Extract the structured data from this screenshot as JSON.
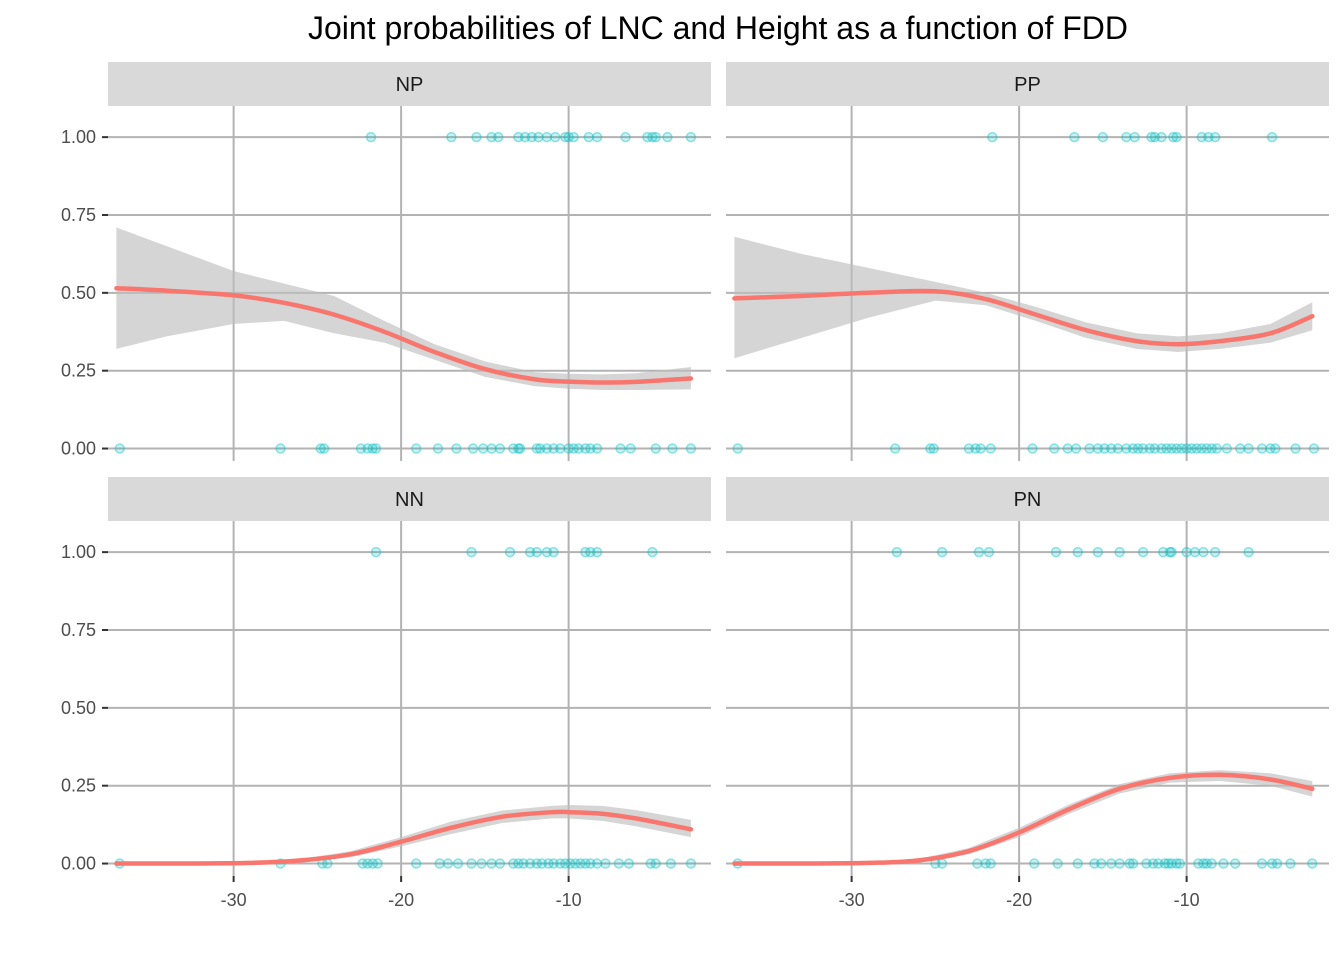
{
  "chart_data": {
    "type": "scatter",
    "title": "Joint probabilities of LNC and Height as a function of FDD",
    "xlabel": "",
    "ylabel": "",
    "xlim": [
      -37.5,
      -1.5
    ],
    "ylim": [
      -0.04,
      1.1
    ],
    "x_ticks": [
      -30,
      -20,
      -10
    ],
    "x_tick_labels": [
      "-30",
      "-20",
      "-10"
    ],
    "y_ticks": [
      0,
      0.25,
      0.5,
      0.75,
      1
    ],
    "y_tick_labels": [
      "0.00",
      "0.25",
      "0.50",
      "0.75",
      "1.00"
    ],
    "grid": true,
    "colors": {
      "points": "#00BFC4",
      "smooth_line": "#F8766D",
      "ribbon": "#BEBEBE",
      "strip": "#D9D9D9"
    },
    "panels": [
      {
        "label": "NP",
        "points_at_1": [
          -21.8,
          -17,
          -15.5,
          -14.6,
          -14.2,
          -13,
          -12.6,
          -12.2,
          -11.8,
          -11.3,
          -10.8,
          -10.2,
          -10,
          -9.7,
          -8.8,
          -8.3,
          -6.6,
          -5.3,
          -5,
          -4.8,
          -4.1,
          -2.7
        ],
        "points_at_0": [
          -36.8,
          -27.2,
          -24.8,
          -24.6,
          -22.4,
          -22,
          -21.7,
          -21.5,
          -19.1,
          -17.8,
          -16.7,
          -15.7,
          -15.1,
          -14.6,
          -14.1,
          -13.3,
          -13,
          -12.9,
          -11.9,
          -11.7,
          -11.3,
          -10.9,
          -10.5,
          -10,
          -9.7,
          -9.4,
          -9,
          -8.7,
          -8.3,
          -6.9,
          -6.3,
          -4.8,
          -3.8,
          -2.7
        ],
        "smooth_x": [
          -37,
          -34,
          -30,
          -27,
          -24,
          -21,
          -18,
          -15,
          -12,
          -10,
          -8,
          -6,
          -2.7
        ],
        "smooth_y": [
          0.515,
          0.507,
          0.492,
          0.468,
          0.43,
          0.375,
          0.31,
          0.255,
          0.222,
          0.215,
          0.212,
          0.214,
          0.225
        ],
        "ribbon_upper": [
          0.71,
          0.65,
          0.57,
          0.53,
          0.49,
          0.41,
          0.335,
          0.28,
          0.245,
          0.24,
          0.238,
          0.242,
          0.262
        ],
        "ribbon_lower": [
          0.32,
          0.36,
          0.4,
          0.41,
          0.37,
          0.34,
          0.285,
          0.23,
          0.2,
          0.192,
          0.188,
          0.188,
          0.19
        ]
      },
      {
        "label": "PP",
        "points_at_1": [
          -21.6,
          -16.7,
          -15,
          -13.6,
          -13.1,
          -12.1,
          -11.9,
          -11.5,
          -10.8,
          -10.6,
          -9.1,
          -8.7,
          -8.3,
          -4.9
        ],
        "points_at_0": [
          -36.8,
          -27.4,
          -25.3,
          -25.1,
          -23,
          -22.6,
          -22.3,
          -21.7,
          -19.2,
          -17.9,
          -17.1,
          -16.6,
          -15.8,
          -15.3,
          -14.9,
          -14.5,
          -14.1,
          -13.6,
          -13.2,
          -12.9,
          -12.6,
          -12.2,
          -11.9,
          -11.5,
          -11.2,
          -10.9,
          -10.6,
          -10.3,
          -10,
          -9.7,
          -9.4,
          -9.1,
          -8.8,
          -8.5,
          -8.2,
          -7.6,
          -6.8,
          -6.3,
          -5.5,
          -5,
          -4.7,
          -3.5,
          -2.4
        ],
        "smooth_x": [
          -37,
          -33,
          -29,
          -25,
          -22,
          -19,
          -16,
          -13,
          -10.5,
          -8,
          -5,
          -2.5
        ],
        "smooth_y": [
          0.482,
          0.49,
          0.5,
          0.505,
          0.48,
          0.43,
          0.38,
          0.345,
          0.335,
          0.345,
          0.37,
          0.425
        ],
        "ribbon_upper": [
          0.68,
          0.625,
          0.58,
          0.535,
          0.5,
          0.455,
          0.405,
          0.37,
          0.36,
          0.37,
          0.4,
          0.47
        ],
        "ribbon_lower": [
          0.29,
          0.355,
          0.42,
          0.475,
          0.46,
          0.41,
          0.355,
          0.32,
          0.31,
          0.32,
          0.34,
          0.38
        ]
      },
      {
        "label": "NN",
        "points_at_1": [
          -21.5,
          -15.8,
          -13.5,
          -12.3,
          -11.9,
          -11.3,
          -10.9,
          -9,
          -8.7,
          -8.3,
          -5
        ],
        "points_at_0": [
          -36.8,
          -27.2,
          -24.7,
          -24.4,
          -22.3,
          -22,
          -21.7,
          -21.4,
          -19.1,
          -17.7,
          -17.2,
          -16.6,
          -15.8,
          -15.2,
          -14.6,
          -14.1,
          -13.3,
          -13,
          -12.7,
          -12.3,
          -11.9,
          -11.6,
          -11.2,
          -10.9,
          -10.5,
          -10.2,
          -9.9,
          -9.6,
          -9.3,
          -9,
          -8.7,
          -8.3,
          -7.8,
          -7,
          -6.4,
          -5.1,
          -4.8,
          -3.9,
          -2.7
        ],
        "smooth_x": [
          -37,
          -33,
          -29,
          -26,
          -23,
          -20,
          -17,
          -14,
          -11,
          -10,
          -8,
          -6,
          -2.7
        ],
        "smooth_y": [
          0,
          0,
          0.002,
          0.01,
          0.03,
          0.07,
          0.115,
          0.15,
          0.165,
          0.165,
          0.16,
          0.145,
          0.11
        ],
        "ribbon_upper": [
          0,
          0,
          0.005,
          0.015,
          0.04,
          0.085,
          0.135,
          0.17,
          0.185,
          0.188,
          0.185,
          0.172,
          0.14
        ],
        "ribbon_lower": [
          0,
          0,
          0,
          0.005,
          0.02,
          0.055,
          0.095,
          0.13,
          0.145,
          0.145,
          0.137,
          0.12,
          0.085
        ]
      },
      {
        "label": "PN",
        "points_at_1": [
          -27.3,
          -24.6,
          -22.4,
          -21.8,
          -17.8,
          -16.5,
          -15.3,
          -14,
          -12.6,
          -11.4,
          -11,
          -10.9,
          -10,
          -9.5,
          -9,
          -8.3,
          -6.3
        ],
        "points_at_0": [
          -36.8,
          -25,
          -24.6,
          -22.5,
          -22,
          -21.7,
          -19.1,
          -17.7,
          -16.5,
          -15.5,
          -15.1,
          -14.5,
          -14,
          -13.4,
          -13.2,
          -12.4,
          -12,
          -11.7,
          -11.3,
          -11.1,
          -10.9,
          -10.6,
          -10.4,
          -9.3,
          -9,
          -8.8,
          -8.5,
          -7.8,
          -7.1,
          -5.5,
          -4.9,
          -4.6,
          -3.8,
          -2.5
        ],
        "smooth_x": [
          -37,
          -33,
          -29,
          -26,
          -23,
          -20,
          -17,
          -14,
          -11,
          -8,
          -5,
          -2.5
        ],
        "smooth_y": [
          0,
          0,
          0.002,
          0.01,
          0.04,
          0.1,
          0.175,
          0.24,
          0.275,
          0.285,
          0.27,
          0.24
        ],
        "ribbon_upper": [
          0,
          0,
          0.005,
          0.015,
          0.05,
          0.115,
          0.19,
          0.255,
          0.29,
          0.3,
          0.29,
          0.265
        ],
        "ribbon_lower": [
          0,
          0,
          0,
          0.005,
          0.03,
          0.085,
          0.16,
          0.225,
          0.26,
          0.265,
          0.25,
          0.215
        ]
      }
    ]
  }
}
